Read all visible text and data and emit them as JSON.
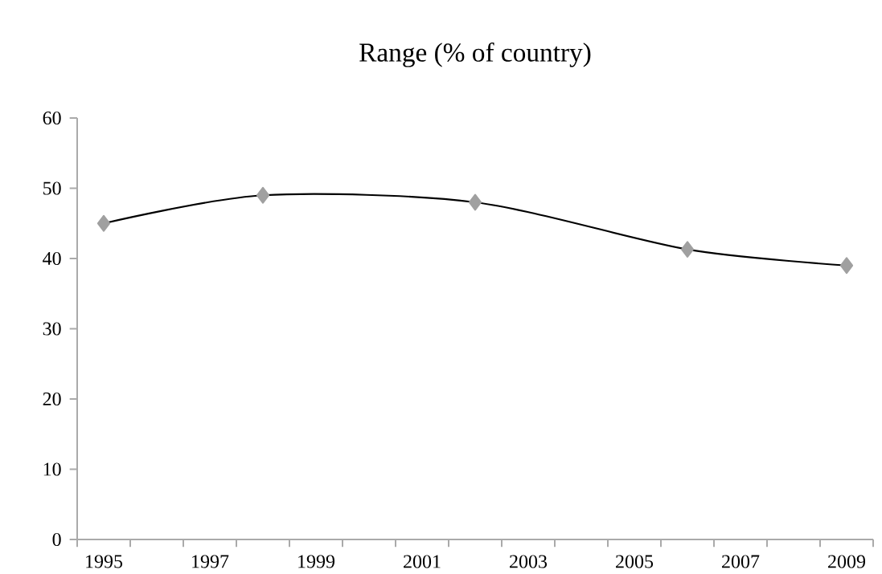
{
  "chart_data": {
    "type": "line",
    "title": "Range (% of country)",
    "categories": [
      "1995",
      null,
      "1997",
      null,
      "1999",
      null,
      "2001",
      null,
      "2003",
      null,
      "2005",
      null,
      "2007",
      null,
      "2009"
    ],
    "values": [
      45,
      null,
      null,
      49,
      null,
      null,
      null,
      48,
      null,
      null,
      null,
      41.3,
      null,
      null,
      39
    ],
    "color": "#000000",
    "marker": "diamond",
    "line_style": "solid",
    "ylim": [
      0,
      60
    ],
    "yticks": [
      0,
      10,
      20,
      30,
      40,
      50,
      60
    ],
    "grid": false
  }
}
